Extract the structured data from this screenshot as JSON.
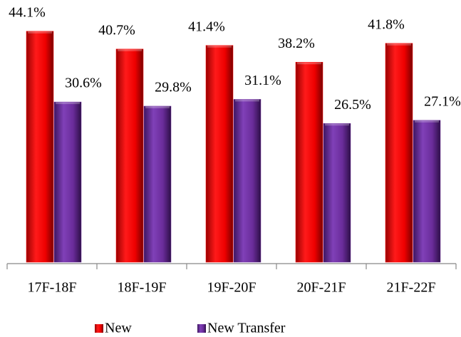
{
  "chart_data": {
    "type": "bar",
    "categories": [
      "17F-18F",
      "18F-19F",
      "19F-20F",
      "20F-21F",
      "21F-22F"
    ],
    "series": [
      {
        "name": "New",
        "color": "#ff0000",
        "values": [
          44.1,
          40.7,
          41.4,
          38.2,
          41.8
        ],
        "value_labels": [
          "44.1%",
          "40.7%",
          "41.4%",
          "38.2%",
          "41.8%"
        ]
      },
      {
        "name": "New Transfer",
        "color": "#7030a0",
        "values": [
          30.6,
          29.8,
          31.1,
          26.5,
          27.1
        ],
        "value_labels": [
          "30.6%",
          "29.8%",
          "31.1%",
          "26.5%",
          "27.1%"
        ]
      }
    ],
    "legend": "bottom"
  }
}
